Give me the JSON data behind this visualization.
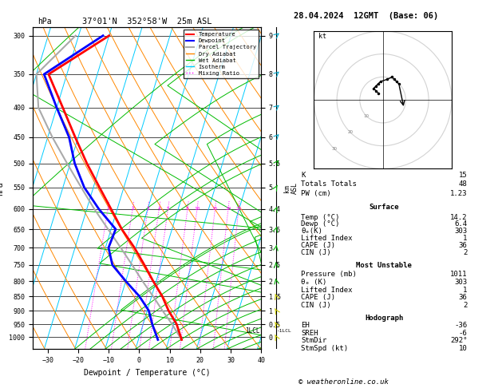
{
  "title_left": "37°01'N  352°58'W  25m ASL",
  "title_right": "28.04.2024  12GMT  (Base: 06)",
  "xlabel": "Dewpoint / Temperature (°C)",
  "ylabel_left": "hPa",
  "pressure_levels": [
    300,
    350,
    400,
    450,
    500,
    550,
    600,
    650,
    700,
    750,
    800,
    850,
    900,
    950,
    1000
  ],
  "xlim": [
    -35,
    40
  ],
  "ylim_p": [
    1050,
    290
  ],
  "temp_profile": {
    "pressure": [
      1011,
      950,
      900,
      850,
      800,
      750,
      700,
      650,
      600,
      550,
      500,
      450,
      400,
      350,
      300
    ],
    "temp": [
      14.2,
      11.0,
      7.0,
      3.5,
      -1.0,
      -5.5,
      -10.5,
      -16.5,
      -22.0,
      -28.0,
      -34.5,
      -41.0,
      -48.0,
      -56.0,
      -40.0
    ]
  },
  "dewp_profile": {
    "pressure": [
      1011,
      950,
      900,
      850,
      800,
      750,
      700,
      650,
      600,
      550,
      500,
      450,
      400,
      350,
      300
    ],
    "dewp": [
      6.4,
      3.0,
      0.5,
      -4.0,
      -10.0,
      -16.0,
      -19.0,
      -18.5,
      -26.0,
      -33.0,
      -38.5,
      -43.0,
      -50.0,
      -57.5,
      -42.0
    ]
  },
  "parcel_profile": {
    "pressure": [
      1011,
      950,
      900,
      850,
      800,
      750,
      700,
      650,
      600,
      550,
      500,
      450,
      400,
      350,
      300
    ],
    "temp": [
      14.2,
      9.5,
      5.0,
      0.5,
      -4.5,
      -9.5,
      -15.0,
      -21.0,
      -27.5,
      -34.0,
      -41.0,
      -48.5,
      -56.0,
      -60.0,
      -51.0
    ]
  },
  "skew_factor": 25.0,
  "isotherm_color": "#00ccff",
  "dry_adiabat_color": "#ff8800",
  "wet_adiabat_color": "#00bb00",
  "mixing_ratio_color": "#ff00ff",
  "mixing_ratio_values": [
    1,
    2,
    3,
    4,
    5,
    8,
    10,
    15,
    20,
    25
  ],
  "temp_color": "#ff0000",
  "dewp_color": "#0000ff",
  "parcel_color": "#aaaaaa",
  "background_color": "#ffffff",
  "lcl_pressure": 975,
  "km_plevs": [
    300,
    350,
    400,
    450,
    500,
    550,
    600,
    650,
    700,
    750,
    800,
    850,
    900,
    950,
    1000
  ],
  "km_vals": [
    9,
    8,
    7,
    6,
    5.5,
    5,
    4.4,
    3.6,
    3,
    2.5,
    2,
    1.5,
    1,
    0.5,
    0
  ],
  "wind_plevs": [
    1000,
    950,
    900,
    850,
    800,
    750,
    700,
    650,
    600,
    550,
    500,
    450,
    400,
    350,
    300
  ],
  "wind_u": [
    -2,
    -3,
    -4,
    -3,
    -2,
    -1,
    2,
    4,
    5,
    6,
    7,
    8,
    8,
    6,
    5
  ],
  "wind_v": [
    3,
    4,
    5,
    6,
    7,
    8,
    9,
    10,
    9,
    8,
    7,
    6,
    5,
    4,
    3
  ],
  "hodo_u": [
    -2,
    -3,
    -4,
    -3,
    -2,
    -1,
    2,
    4,
    5,
    6,
    7
  ],
  "hodo_v": [
    3,
    4,
    5,
    6,
    7,
    8,
    9,
    10,
    9,
    8,
    7
  ],
  "stats": {
    "K": 15,
    "Totals_Totals": 48,
    "PW_cm": 1.23,
    "Surface_Temp": 14.2,
    "Surface_Dewp": 6.4,
    "Surface_ThetaE": 303,
    "Surface_LI": 1,
    "Surface_CAPE": 36,
    "Surface_CIN": 2,
    "MU_Pressure": 1011,
    "MU_ThetaE": 303,
    "MU_LI": 1,
    "MU_CAPE": 36,
    "MU_CIN": 2,
    "EH": -36,
    "SREH": -6,
    "StmDir": 292,
    "StmSpd": 10
  },
  "copyright": "© weatheronline.co.uk"
}
